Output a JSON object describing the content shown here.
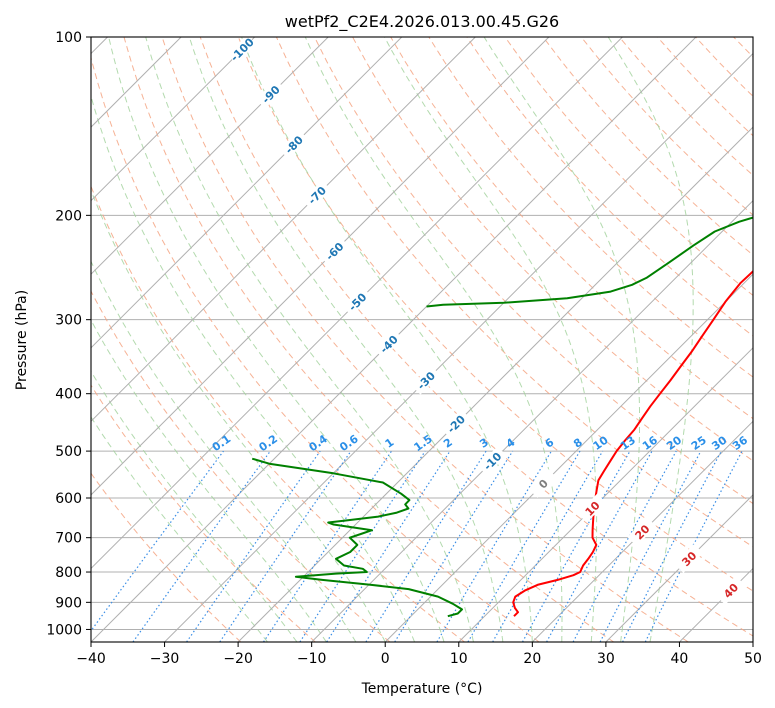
{
  "chart_data": {
    "type": "line",
    "title": "wetPf2_C2E4.2026.013.00.45.G26",
    "xlabel": "Temperature (°C)",
    "ylabel": "Pressure (hPa)",
    "xlim": [
      -40,
      50
    ],
    "ylim": [
      1050,
      100
    ],
    "x_ticks": [
      -40,
      -30,
      -20,
      -10,
      0,
      10,
      20,
      30,
      40,
      50
    ],
    "y_ticks": [
      100,
      200,
      300,
      400,
      500,
      600,
      700,
      800,
      900,
      1000
    ],
    "x_tick_labels": [
      "−40",
      "−30",
      "−20",
      "−10",
      "0",
      "10",
      "20",
      "30",
      "40",
      "50"
    ],
    "y_tick_labels": [
      "100",
      "200",
      "300",
      "400",
      "500",
      "600",
      "700",
      "800",
      "900",
      "1000"
    ],
    "colors": {
      "temperature": "#ff0000",
      "dewpoint": "#008000",
      "isotherm": "#b0b0b0",
      "dry_adiabat": "#f4a582",
      "moist_adiabat": "#a6d4a0",
      "mixing_ratio": "#3a8ee6",
      "isotherm_label": "#1f77b4",
      "mixing_label": "#2a8fe8",
      "warm_label": "#d62728"
    },
    "series": [
      {
        "name": "Temperature",
        "points": [
          [
            14,
            950
          ],
          [
            14,
            935
          ],
          [
            13,
            920
          ],
          [
            12,
            900
          ],
          [
            11.5,
            880
          ],
          [
            12,
            860
          ],
          [
            13,
            840
          ],
          [
            15,
            825
          ],
          [
            16.5,
            810
          ],
          [
            17,
            800
          ],
          [
            16.5,
            780
          ],
          [
            16.3,
            760
          ],
          [
            16,
            740
          ],
          [
            15.5,
            720
          ],
          [
            14,
            700
          ],
          [
            13,
            680
          ],
          [
            12,
            660
          ],
          [
            11,
            640
          ],
          [
            10,
            620
          ],
          [
            9,
            600
          ],
          [
            8,
            580
          ],
          [
            7,
            560
          ],
          [
            6.5,
            540
          ],
          [
            6,
            520
          ],
          [
            5.5,
            500
          ],
          [
            5.2,
            480
          ],
          [
            5,
            460
          ],
          [
            4.5,
            440
          ],
          [
            4,
            420
          ],
          [
            3.6,
            400
          ],
          [
            3.2,
            380
          ],
          [
            2.7,
            360
          ],
          [
            2.2,
            340
          ],
          [
            1.5,
            320
          ],
          [
            0.8,
            300
          ],
          [
            0,
            280
          ],
          [
            -0.5,
            260
          ],
          [
            -0.3,
            240
          ],
          [
            -0.6,
            220
          ],
          [
            -0.4,
            200
          ],
          [
            0.5,
            185
          ],
          [
            2,
            170
          ],
          [
            4,
            160
          ],
          [
            6,
            150
          ],
          [
            7.5,
            140
          ],
          [
            8.5,
            130
          ],
          [
            9.5,
            122
          ],
          [
            10.5,
            115
          ],
          [
            11.5,
            108
          ],
          [
            12.5,
            100
          ]
        ]
      },
      {
        "name": "Dewpoint",
        "points": [
          [
            5,
            950
          ],
          [
            6,
            940
          ],
          [
            6,
            925
          ],
          [
            4,
            905
          ],
          [
            1,
            880
          ],
          [
            -4,
            855
          ],
          [
            -10,
            840
          ],
          [
            -17,
            825
          ],
          [
            -21,
            815
          ],
          [
            -16,
            805
          ],
          [
            -12,
            800
          ],
          [
            -13,
            790
          ],
          [
            -16,
            780
          ],
          [
            -18,
            760
          ],
          [
            -17,
            740
          ],
          [
            -17,
            720
          ],
          [
            -19,
            700
          ],
          [
            -18,
            690
          ],
          [
            -17,
            680
          ],
          [
            -23,
            665
          ],
          [
            -24,
            660
          ],
          [
            -22,
            655
          ],
          [
            -18,
            645
          ],
          [
            -16,
            635
          ],
          [
            -15,
            625
          ],
          [
            -16,
            615
          ],
          [
            -16,
            605
          ],
          [
            -18,
            590
          ],
          [
            -22,
            565
          ],
          [
            -30,
            545
          ],
          [
            -40,
            525
          ],
          [
            -43,
            515
          ]
        ]
      },
      {
        "name": "Dewpoint upper",
        "points": [
          [
            -40,
            285
          ],
          [
            -38,
            283
          ],
          [
            -30,
            281
          ],
          [
            -22,
            276
          ],
          [
            -17,
            269
          ],
          [
            -15,
            262
          ],
          [
            -14,
            255
          ],
          [
            -13,
            240
          ],
          [
            -12,
            225
          ],
          [
            -11,
            213
          ],
          [
            -9,
            205
          ],
          [
            -7,
            200
          ],
          [
            -5.5,
            195
          ],
          [
            -5,
            190
          ],
          [
            -5,
            182
          ],
          [
            -5.5,
            172
          ],
          [
            -5,
            162
          ],
          [
            -4.5,
            155
          ],
          [
            -4.5,
            145
          ],
          [
            -4,
            140
          ],
          [
            -4,
            133
          ],
          [
            -3,
            127
          ],
          [
            -1,
            122
          ],
          [
            0.5,
            118
          ],
          [
            1,
            113
          ],
          [
            1.5,
            108
          ],
          [
            2.5,
            103
          ],
          [
            3,
            100
          ]
        ]
      }
    ],
    "temperature_labels": [
      "-100",
      "-90",
      "-80",
      "-70",
      "-60",
      "-50",
      "-40",
      "-30",
      "-20",
      "-10",
      "0",
      "10",
      "20",
      "30",
      "40"
    ],
    "mixing_ratio_labels": [
      "0.1",
      "0.2",
      "0.4",
      "0.6",
      "1",
      "1.5",
      "2",
      "3",
      "4",
      "6",
      "8",
      "10",
      "13",
      "16",
      "20",
      "25",
      "30",
      "36"
    ],
    "mixing_ratio_values": [
      0.1,
      0.2,
      0.4,
      0.6,
      1,
      1.5,
      2,
      3,
      4,
      6,
      8,
      10,
      13,
      16,
      20,
      25,
      30,
      36
    ]
  }
}
